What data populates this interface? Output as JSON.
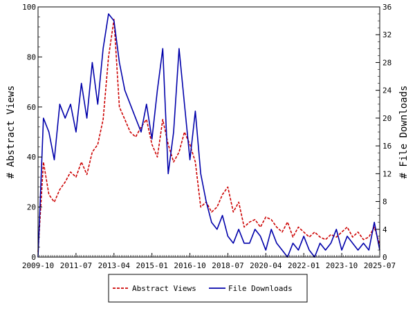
{
  "chart_data": {
    "type": "line",
    "title": "",
    "xlabel": "",
    "ylabel_left": "# Abstract Views",
    "ylabel_right": "# File Downloads",
    "x_ticks": [
      "2009-10",
      "2011-07",
      "2013-04",
      "2015-01",
      "2016-10",
      "2018-07",
      "2020-04",
      "2022-01",
      "2023-10",
      "2025-07"
    ],
    "y_left_ticks": [
      0,
      20,
      40,
      60,
      80,
      100
    ],
    "y_right_ticks": [
      0,
      4,
      8,
      12,
      16,
      20,
      24,
      28,
      32,
      36
    ],
    "ylim_left": [
      0,
      100
    ],
    "ylim_right": [
      0,
      36
    ],
    "xlim": [
      "2009-10",
      "2025-07"
    ],
    "legend_position": "bottom-center",
    "series": [
      {
        "name": "Abstract Views",
        "axis": "left",
        "color": "#cc0000",
        "style": "dashed",
        "x": [
          "2009-10",
          "2010-01",
          "2010-04",
          "2010-07",
          "2010-10",
          "2011-01",
          "2011-04",
          "2011-07",
          "2011-10",
          "2012-01",
          "2012-04",
          "2012-07",
          "2012-10",
          "2013-01",
          "2013-04",
          "2013-07",
          "2013-10",
          "2014-01",
          "2014-04",
          "2014-07",
          "2014-10",
          "2015-01",
          "2015-04",
          "2015-07",
          "2015-10",
          "2016-01",
          "2016-04",
          "2016-07",
          "2016-10",
          "2017-01",
          "2017-04",
          "2017-07",
          "2017-10",
          "2018-01",
          "2018-04",
          "2018-07",
          "2018-10",
          "2019-01",
          "2019-04",
          "2019-07",
          "2019-10",
          "2020-01",
          "2020-04",
          "2020-07",
          "2020-10",
          "2021-01",
          "2021-04",
          "2021-07",
          "2021-10",
          "2022-01",
          "2022-04",
          "2022-07",
          "2022-10",
          "2023-01",
          "2023-04",
          "2023-07",
          "2023-10",
          "2024-01",
          "2024-04",
          "2024-07",
          "2024-10",
          "2025-01",
          "2025-04",
          "2025-07"
        ],
        "values": [
          2,
          38,
          25,
          22,
          27,
          30,
          34,
          32,
          38,
          33,
          42,
          45,
          55,
          80,
          95,
          60,
          55,
          50,
          48,
          52,
          55,
          45,
          40,
          55,
          45,
          38,
          42,
          50,
          45,
          38,
          20,
          22,
          18,
          20,
          25,
          28,
          18,
          22,
          12,
          14,
          15,
          12,
          16,
          15,
          12,
          10,
          14,
          8,
          12,
          10,
          8,
          10,
          8,
          7,
          9,
          8,
          10,
          12,
          8,
          10,
          7,
          8,
          12,
          5
        ]
      },
      {
        "name": "File Downloads",
        "axis": "right",
        "color": "#0000aa",
        "style": "solid",
        "x": [
          "2009-10",
          "2010-01",
          "2010-04",
          "2010-07",
          "2010-10",
          "2011-01",
          "2011-04",
          "2011-07",
          "2011-10",
          "2012-01",
          "2012-04",
          "2012-07",
          "2012-10",
          "2013-01",
          "2013-04",
          "2013-07",
          "2013-10",
          "2014-01",
          "2014-04",
          "2014-07",
          "2014-10",
          "2015-01",
          "2015-04",
          "2015-07",
          "2015-10",
          "2016-01",
          "2016-04",
          "2016-07",
          "2016-10",
          "2017-01",
          "2017-04",
          "2017-07",
          "2017-10",
          "2018-01",
          "2018-04",
          "2018-07",
          "2018-10",
          "2019-01",
          "2019-04",
          "2019-07",
          "2019-10",
          "2020-01",
          "2020-04",
          "2020-07",
          "2020-10",
          "2021-01",
          "2021-04",
          "2021-07",
          "2021-10",
          "2022-01",
          "2022-04",
          "2022-07",
          "2022-10",
          "2023-01",
          "2023-04",
          "2023-07",
          "2023-10",
          "2024-01",
          "2024-04",
          "2024-07",
          "2024-10",
          "2025-01",
          "2025-04",
          "2025-07"
        ],
        "values": [
          0,
          20,
          18,
          14,
          22,
          20,
          22,
          18,
          25,
          20,
          28,
          22,
          30,
          35,
          34,
          28,
          24,
          22,
          20,
          18,
          22,
          17,
          24,
          30,
          12,
          18,
          30,
          22,
          14,
          21,
          12,
          8,
          5,
          4,
          6,
          3,
          2,
          4,
          2,
          2,
          4,
          3,
          1,
          4,
          2,
          1,
          0,
          2,
          1,
          3,
          1,
          0,
          2,
          1,
          2,
          4,
          1,
          3,
          2,
          1,
          2,
          1,
          5,
          1
        ]
      }
    ]
  }
}
